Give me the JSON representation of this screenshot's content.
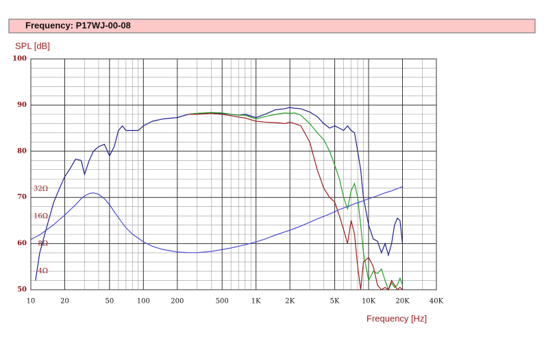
{
  "chart_data": {
    "type": "line",
    "title": "Frequency: P17WJ-00-08",
    "y_label": "SPL [dB]",
    "x_label": "Frequency [Hz]",
    "x_scale": "log",
    "y2_scale": "log",
    "grid": true,
    "xlim": [
      10,
      40000
    ],
    "xticks": [
      10,
      20,
      50,
      100,
      200,
      500,
      {
        "value": 1000,
        "label": "1K"
      },
      {
        "value": 2000,
        "label": "2K"
      },
      {
        "value": 5000,
        "label": "5K"
      },
      {
        "value": 10000,
        "label": "10K"
      },
      {
        "value": 20000,
        "label": "20K"
      },
      {
        "value": 40000,
        "label": "40K"
      }
    ],
    "x_minor_ticks": [
      30,
      40,
      60,
      70,
      80,
      90,
      300,
      400,
      600,
      700,
      800,
      900,
      3000,
      4000,
      6000,
      7000,
      8000,
      9000,
      30000
    ],
    "ylim": [
      50,
      100
    ],
    "yticks": [
      50,
      60,
      70,
      80,
      90,
      100
    ],
    "y_minor_ticks": [
      52,
      54,
      56,
      58,
      62,
      64,
      66,
      68,
      72,
      74,
      76,
      78,
      82,
      84,
      86,
      88,
      92,
      94,
      96,
      98
    ],
    "y2lim": [
      2.5,
      860
    ],
    "y2ticks": [
      {
        "value": 4,
        "label": "4Ω"
      },
      {
        "value": 8,
        "label": "8Ω"
      },
      {
        "value": 16,
        "label": "16Ω"
      },
      {
        "value": 32,
        "label": "32Ω"
      }
    ],
    "x": [
      10,
      11,
      12,
      14,
      16,
      18,
      20,
      22,
      25,
      28,
      30,
      33,
      36,
      40,
      45,
      50,
      55,
      60,
      65,
      70,
      80,
      90,
      100,
      120,
      150,
      200,
      250,
      300,
      400,
      500,
      600,
      700,
      800,
      1000,
      1200,
      1500,
      1800,
      2000,
      2200,
      2500,
      3000,
      3500,
      4000,
      4500,
      5000,
      5500,
      6000,
      6500,
      7000,
      7500,
      8000,
      8500,
      9000,
      10000,
      11000,
      12000,
      13000,
      14000,
      15000,
      16000,
      17000,
      18000,
      19000,
      20000
    ],
    "series": [
      {
        "color": "#1c1c8e",
        "values": [
          null,
          52,
          58,
          64,
          69,
          72,
          74.5,
          76,
          78.3,
          78,
          75,
          78,
          80,
          81,
          81.5,
          79,
          81,
          84.5,
          85.5,
          84.5,
          84.5,
          84.5,
          85.5,
          86.5,
          87,
          87.3,
          88,
          88.2,
          88.3,
          88.2,
          88,
          87.8,
          88,
          87.3,
          88,
          89,
          89.2,
          89.5,
          89.3,
          89.2,
          88.5,
          87.5,
          86,
          85,
          85.5,
          85,
          84.5,
          85.5,
          84.5,
          84,
          80,
          76,
          70,
          64,
          61,
          60.5,
          58,
          60,
          57.5,
          60,
          64,
          65.5,
          65,
          60
        ]
      },
      {
        "color": "#22a022",
        "values": [
          null,
          null,
          null,
          null,
          null,
          null,
          null,
          null,
          null,
          null,
          null,
          null,
          null,
          null,
          null,
          null,
          null,
          null,
          null,
          null,
          null,
          null,
          null,
          null,
          null,
          null,
          88,
          88.2,
          88.4,
          88.3,
          88,
          87.8,
          87.8,
          87,
          87.5,
          88,
          88.3,
          88.2,
          88.3,
          87.8,
          86,
          84,
          82.5,
          80,
          77,
          74,
          70,
          67.5,
          71.5,
          73,
          70,
          64,
          58,
          52,
          54,
          53.5,
          54.5,
          52,
          50,
          51.5,
          50.5,
          51,
          52.5,
          51
        ]
      },
      {
        "color": "#9c1c1c",
        "values": [
          null,
          null,
          null,
          null,
          null,
          null,
          null,
          null,
          null,
          null,
          null,
          null,
          null,
          null,
          null,
          null,
          null,
          null,
          null,
          null,
          null,
          null,
          null,
          null,
          null,
          null,
          88,
          88,
          88.2,
          88,
          87.7,
          87.4,
          87.2,
          86.5,
          86.3,
          86.2,
          86,
          86.3,
          86,
          85.5,
          82,
          76,
          72,
          70,
          69,
          66,
          63,
          60,
          65,
          62,
          55,
          50,
          56,
          57,
          55,
          51,
          50,
          50.5,
          50,
          52,
          51,
          50,
          50.5,
          50
        ]
      },
      {
        "color": "#4a4ad6",
        "axis": "y2",
        "values": [
          8.9,
          9.5,
          10,
          11.5,
          13,
          14.8,
          16.5,
          18.5,
          21.5,
          25,
          26.8,
          28.5,
          29,
          28,
          25,
          21.5,
          18,
          15.5,
          13.5,
          12,
          10.2,
          9.2,
          8.4,
          7.5,
          6.9,
          6.5,
          6.4,
          6.4,
          6.6,
          6.9,
          7.2,
          7.5,
          7.8,
          8.4,
          9,
          10,
          10.8,
          11.3,
          11.8,
          12.5,
          13.8,
          15,
          16,
          17,
          18,
          19,
          19.8,
          20.5,
          21.3,
          22,
          22.6,
          23.2,
          23.8,
          25,
          26,
          27,
          28,
          29,
          29.8,
          30.5,
          31.5,
          32.3,
          33,
          34
        ]
      }
    ]
  }
}
